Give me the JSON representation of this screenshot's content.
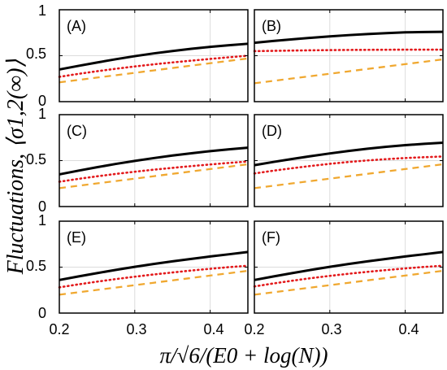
{
  "figure": {
    "ylabel": "Fluctuations, ⟨σ1,2(∞)⟩",
    "xlabel": "π/√6/(E0 + log(N))"
  },
  "chart_data": [
    {
      "type": "line",
      "panel": "(A)",
      "x": [
        0.2,
        0.225,
        0.25,
        0.275,
        0.3,
        0.325,
        0.35,
        0.375,
        0.4,
        0.425,
        0.45
      ],
      "series": [
        {
          "style": "solid",
          "color": "#000000",
          "values": [
            0.35,
            0.389,
            0.426,
            0.462,
            0.495,
            0.525,
            0.551,
            0.575,
            0.596,
            0.614,
            0.63
          ]
        },
        {
          "style": "dotted",
          "color": "#e31a1c",
          "values": [
            0.27,
            0.302,
            0.331,
            0.358,
            0.383,
            0.406,
            0.427,
            0.446,
            0.465,
            0.483,
            0.5
          ]
        },
        {
          "style": "dashed",
          "color": "#f0a830",
          "values": [
            0.21,
            0.236,
            0.262,
            0.288,
            0.314,
            0.34,
            0.366,
            0.392,
            0.418,
            0.444,
            0.47
          ]
        }
      ],
      "xlim": [
        0.2,
        0.45
      ],
      "ylim": [
        0,
        1
      ],
      "yticks": [
        0,
        0.5,
        1
      ],
      "grid": true
    },
    {
      "type": "line",
      "panel": "(B)",
      "x": [
        0.2,
        0.225,
        0.25,
        0.275,
        0.3,
        0.325,
        0.35,
        0.375,
        0.4,
        0.425,
        0.45
      ],
      "series": [
        {
          "style": "solid",
          "color": "#000000",
          "values": [
            0.64,
            0.66,
            0.678,
            0.695,
            0.71,
            0.724,
            0.736,
            0.746,
            0.754,
            0.758,
            0.76
          ]
        },
        {
          "style": "dotted",
          "color": "#e31a1c",
          "values": [
            0.55,
            0.553,
            0.556,
            0.559,
            0.561,
            0.563,
            0.564,
            0.565,
            0.566,
            0.566,
            0.566
          ]
        },
        {
          "style": "dashed",
          "color": "#f0a830",
          "values": [
            0.2,
            0.226,
            0.252,
            0.278,
            0.304,
            0.33,
            0.356,
            0.382,
            0.408,
            0.434,
            0.46
          ]
        }
      ],
      "xlim": [
        0.2,
        0.45
      ],
      "ylim": [
        0,
        1
      ],
      "yticks": [
        0,
        0.5,
        1
      ],
      "grid": true
    },
    {
      "type": "line",
      "panel": "(C)",
      "x": [
        0.2,
        0.225,
        0.25,
        0.275,
        0.3,
        0.325,
        0.35,
        0.375,
        0.4,
        0.425,
        0.45
      ],
      "series": [
        {
          "style": "solid",
          "color": "#000000",
          "values": [
            0.35,
            0.39,
            0.428,
            0.464,
            0.497,
            0.527,
            0.555,
            0.58,
            0.603,
            0.623,
            0.64
          ]
        },
        {
          "style": "dotted",
          "color": "#e31a1c",
          "values": [
            0.27,
            0.301,
            0.329,
            0.355,
            0.379,
            0.401,
            0.421,
            0.44,
            0.458,
            0.475,
            0.49
          ]
        },
        {
          "style": "dashed",
          "color": "#f0a830",
          "values": [
            0.2,
            0.226,
            0.252,
            0.278,
            0.304,
            0.33,
            0.356,
            0.382,
            0.408,
            0.434,
            0.46
          ]
        }
      ],
      "xlim": [
        0.2,
        0.45
      ],
      "ylim": [
        0,
        1
      ],
      "yticks": [
        0,
        0.5,
        1
      ],
      "grid": true
    },
    {
      "type": "line",
      "panel": "(D)",
      "x": [
        0.2,
        0.225,
        0.25,
        0.275,
        0.3,
        0.325,
        0.35,
        0.375,
        0.4,
        0.425,
        0.45
      ],
      "series": [
        {
          "style": "solid",
          "color": "#000000",
          "values": [
            0.45,
            0.485,
            0.518,
            0.549,
            0.578,
            0.605,
            0.629,
            0.65,
            0.668,
            0.683,
            0.695
          ]
        },
        {
          "style": "dotted",
          "color": "#e31a1c",
          "values": [
            0.36,
            0.39,
            0.417,
            0.442,
            0.465,
            0.485,
            0.502,
            0.516,
            0.528,
            0.537,
            0.545
          ]
        },
        {
          "style": "dashed",
          "color": "#f0a830",
          "values": [
            0.2,
            0.226,
            0.252,
            0.278,
            0.304,
            0.33,
            0.356,
            0.382,
            0.408,
            0.434,
            0.46
          ]
        }
      ],
      "xlim": [
        0.2,
        0.45
      ],
      "ylim": [
        0,
        1
      ],
      "yticks": [
        0,
        0.5,
        1
      ],
      "grid": true
    },
    {
      "type": "line",
      "panel": "(E)",
      "x": [
        0.2,
        0.225,
        0.25,
        0.275,
        0.3,
        0.325,
        0.35,
        0.375,
        0.4,
        0.425,
        0.45
      ],
      "series": [
        {
          "style": "solid",
          "color": "#000000",
          "values": [
            0.36,
            0.398,
            0.435,
            0.47,
            0.503,
            0.534,
            0.563,
            0.59,
            0.616,
            0.64,
            0.665
          ]
        },
        {
          "style": "dotted",
          "color": "#e31a1c",
          "values": [
            0.28,
            0.312,
            0.342,
            0.37,
            0.396,
            0.42,
            0.442,
            0.463,
            0.482,
            0.5,
            0.515
          ]
        },
        {
          "style": "dashed",
          "color": "#f0a830",
          "values": [
            0.2,
            0.226,
            0.252,
            0.278,
            0.304,
            0.33,
            0.356,
            0.382,
            0.408,
            0.434,
            0.46
          ]
        }
      ],
      "xlim": [
        0.2,
        0.45
      ],
      "ylim": [
        0,
        1
      ],
      "yticks": [
        0,
        0.5,
        1
      ],
      "grid": true
    },
    {
      "type": "line",
      "panel": "(F)",
      "x": [
        0.2,
        0.225,
        0.25,
        0.275,
        0.3,
        0.325,
        0.35,
        0.375,
        0.4,
        0.425,
        0.45
      ],
      "series": [
        {
          "style": "solid",
          "color": "#000000",
          "values": [
            0.36,
            0.398,
            0.435,
            0.47,
            0.503,
            0.534,
            0.563,
            0.59,
            0.616,
            0.64,
            0.665
          ]
        },
        {
          "style": "dotted",
          "color": "#e31a1c",
          "values": [
            0.29,
            0.322,
            0.352,
            0.38,
            0.405,
            0.428,
            0.449,
            0.468,
            0.486,
            0.502,
            0.515
          ]
        },
        {
          "style": "dashed",
          "color": "#f0a830",
          "values": [
            0.2,
            0.226,
            0.252,
            0.278,
            0.304,
            0.33,
            0.356,
            0.382,
            0.408,
            0.434,
            0.46
          ]
        }
      ],
      "xlim": [
        0.2,
        0.45
      ],
      "ylim": [
        0,
        1
      ],
      "yticks": [
        0,
        0.5,
        1
      ],
      "grid": true
    }
  ],
  "axes": {
    "left_ytick_labels": [
      "0",
      "0.5",
      "1"
    ],
    "bottom_xtick_labels": [
      "0.2",
      "0.3",
      "0.4"
    ],
    "right_panel_extra_xtick": "0.2"
  }
}
